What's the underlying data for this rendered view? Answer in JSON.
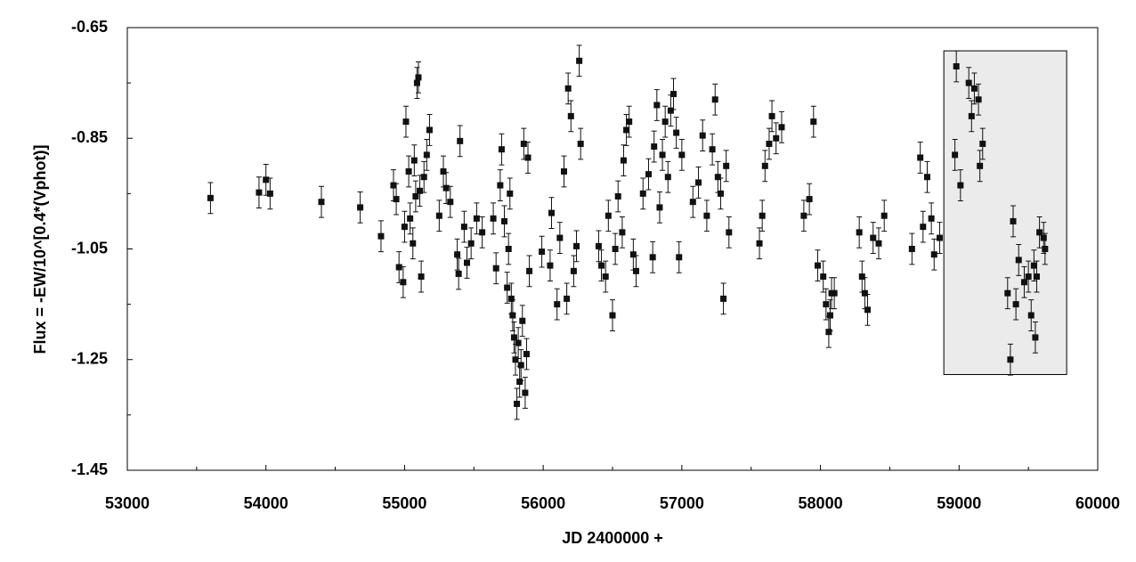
{
  "chart_data": {
    "type": "scatter",
    "x_label": "JD 2400000 +",
    "y_label": "Flux = -EW/10^[0.4*(Vphot)]",
    "xlim": [
      53000,
      60000
    ],
    "xticks": [
      53000,
      54000,
      55000,
      56000,
      57000,
      58000,
      59000,
      60000
    ],
    "xminorticks": [
      53500,
      54500,
      55500,
      56500,
      57500,
      58500,
      59500
    ],
    "ylim": [
      -1.45,
      -0.65
    ],
    "yticks": [
      -0.65,
      -0.85,
      -1.05,
      -1.25,
      -1.45
    ],
    "yminorticks": [
      -0.75,
      -0.95,
      -1.15,
      -1.35
    ],
    "color": "#111111",
    "error": 0.028,
    "highlight": {
      "xlim": [
        58890,
        59776
      ],
      "ylim": [
        -1.277,
        -0.692
      ],
      "color": "#ebebeb"
    },
    "x": [
      53600,
      53950,
      54000,
      54030,
      54400,
      54680,
      54830,
      54920,
      54940,
      54960,
      54990,
      55000,
      55010,
      55030,
      55040,
      55060,
      55070,
      55080,
      55090,
      55100,
      55110,
      55120,
      55140,
      55160,
      55180,
      55250,
      55280,
      55300,
      55330,
      55380,
      55390,
      55400,
      55430,
      55450,
      55480,
      55520,
      55560,
      55640,
      55660,
      55690,
      55700,
      55720,
      55740,
      55750,
      55760,
      55770,
      55780,
      55790,
      55800,
      55810,
      55820,
      55830,
      55840,
      55850,
      55860,
      55870,
      55880,
      55890,
      55900,
      55990,
      56050,
      56060,
      56100,
      56120,
      56150,
      56170,
      56180,
      56200,
      56220,
      56240,
      56260,
      56270,
      56400,
      56420,
      56450,
      56470,
      56500,
      56520,
      56540,
      56570,
      56580,
      56600,
      56620,
      56650,
      56670,
      56720,
      56760,
      56790,
      56800,
      56820,
      56840,
      56860,
      56880,
      56900,
      56920,
      56940,
      56960,
      56980,
      57000,
      57080,
      57120,
      57150,
      57180,
      57220,
      57240,
      57260,
      57280,
      57300,
      57320,
      57340,
      57560,
      57580,
      57600,
      57630,
      57650,
      57680,
      57720,
      57880,
      57920,
      57950,
      57980,
      58020,
      58040,
      58060,
      58070,
      58080,
      58100,
      58280,
      58300,
      58320,
      58340,
      58380,
      58420,
      58460,
      58660,
      58720,
      58740,
      58770,
      58800,
      58820,
      58860,
      58970,
      58980,
      59010,
      59070,
      59090,
      59110,
      59140,
      59150,
      59170,
      59350,
      59370,
      59390,
      59410,
      59430,
      59470,
      59500,
      59520,
      59540,
      59550,
      59560,
      59580,
      59610,
      59620
    ],
    "values": [
      -0.958,
      -0.948,
      -0.925,
      -0.95,
      -0.965,
      -0.975,
      -1.027,
      -0.935,
      -0.96,
      -1.083,
      -1.11,
      -1.01,
      -0.82,
      -0.91,
      -0.995,
      -1.04,
      -0.89,
      -0.955,
      -0.75,
      -0.74,
      -0.945,
      -1.1,
      -0.92,
      -0.88,
      -0.835,
      -0.99,
      -0.91,
      -0.94,
      -0.965,
      -1.06,
      -1.095,
      -0.855,
      -1.01,
      -1.075,
      -1.04,
      -0.995,
      -1.02,
      -0.995,
      -1.085,
      -0.935,
      -0.87,
      -1.0,
      -1.12,
      -1.05,
      -0.95,
      -1.14,
      -1.17,
      -1.21,
      -1.25,
      -1.33,
      -1.22,
      -1.29,
      -1.26,
      -1.18,
      -0.86,
      -1.31,
      -1.24,
      -0.885,
      -1.09,
      -1.055,
      -1.08,
      -0.985,
      -1.15,
      -1.03,
      -0.91,
      -1.14,
      -0.76,
      -0.81,
      -1.09,
      -1.045,
      -0.71,
      -0.86,
      -1.045,
      -1.08,
      -1.1,
      -0.99,
      -1.17,
      -1.05,
      -0.955,
      -1.02,
      -0.89,
      -0.835,
      -0.82,
      -1.06,
      -1.09,
      -0.95,
      -0.915,
      -1.065,
      -0.865,
      -0.79,
      -0.975,
      -0.88,
      -0.82,
      -0.92,
      -0.8,
      -0.77,
      -0.84,
      -1.065,
      -0.88,
      -0.965,
      -0.93,
      -0.845,
      -0.99,
      -0.87,
      -0.78,
      -0.92,
      -0.95,
      -1.14,
      -0.9,
      -1.02,
      -1.04,
      -0.99,
      -0.9,
      -0.86,
      -0.81,
      -0.85,
      -0.83,
      -0.99,
      -0.96,
      -0.82,
      -1.08,
      -1.1,
      -1.15,
      -1.2,
      -1.17,
      -1.13,
      -1.13,
      -1.02,
      -1.1,
      -1.13,
      -1.16,
      -1.03,
      -1.04,
      -0.99,
      -1.05,
      -0.885,
      -1.01,
      -0.92,
      -0.995,
      -1.06,
      -1.03,
      -0.88,
      -0.72,
      -0.935,
      -0.75,
      -0.81,
      -0.76,
      -0.78,
      -0.9,
      -0.86,
      -1.13,
      -1.25,
      -1.0,
      -1.15,
      -1.07,
      -1.11,
      -1.1,
      -1.17,
      -1.08,
      -1.21,
      -1.1,
      -1.02,
      -1.03,
      -1.05
    ]
  }
}
